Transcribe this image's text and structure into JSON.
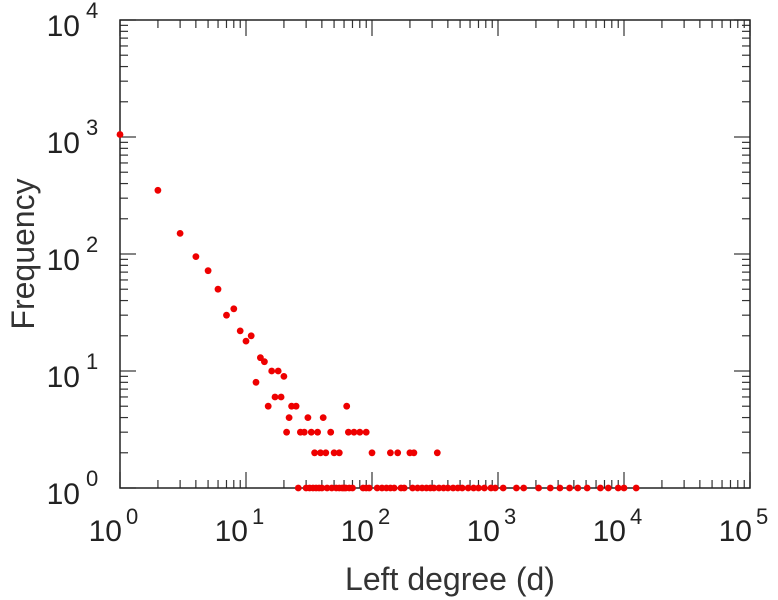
{
  "chart_data": {
    "type": "scatter",
    "title": "",
    "xlabel": "Left degree (d)",
    "ylabel": "Frequency",
    "xscale": "log",
    "yscale": "log",
    "xlim": [
      1,
      100000
    ],
    "ylim": [
      1,
      10000
    ],
    "grid": false,
    "marker_color": "#ee0000",
    "x_ticks": [
      {
        "base": "10",
        "exp": "0"
      },
      {
        "base": "10",
        "exp": "1"
      },
      {
        "base": "10",
        "exp": "2"
      },
      {
        "base": "10",
        "exp": "3"
      },
      {
        "base": "10",
        "exp": "4"
      },
      {
        "base": "10",
        "exp": "5"
      }
    ],
    "y_ticks": [
      {
        "base": "10",
        "exp": "0"
      },
      {
        "base": "10",
        "exp": "1"
      },
      {
        "base": "10",
        "exp": "2"
      },
      {
        "base": "10",
        "exp": "3"
      },
      {
        "base": "10",
        "exp": "4"
      }
    ],
    "points": [
      [
        1,
        1050
      ],
      [
        2,
        350
      ],
      [
        3,
        150
      ],
      [
        4,
        95
      ],
      [
        5,
        72
      ],
      [
        6,
        50
      ],
      [
        7,
        30
      ],
      [
        8,
        34
      ],
      [
        9,
        22
      ],
      [
        10,
        18
      ],
      [
        11,
        20
      ],
      [
        12,
        8
      ],
      [
        13,
        13
      ],
      [
        14,
        12
      ],
      [
        15,
        5
      ],
      [
        16,
        10
      ],
      [
        17,
        6
      ],
      [
        18,
        10
      ],
      [
        19,
        6
      ],
      [
        20,
        9
      ],
      [
        21,
        3
      ],
      [
        22,
        4
      ],
      [
        23,
        5
      ],
      [
        25,
        5
      ],
      [
        27,
        3
      ],
      [
        29,
        3
      ],
      [
        31,
        4
      ],
      [
        33,
        3
      ],
      [
        35,
        2
      ],
      [
        37,
        3
      ],
      [
        39,
        2
      ],
      [
        41,
        4
      ],
      [
        43,
        2
      ],
      [
        47,
        3
      ],
      [
        50,
        2
      ],
      [
        55,
        2
      ],
      [
        63,
        5
      ],
      [
        65,
        3
      ],
      [
        72,
        3
      ],
      [
        80,
        3
      ],
      [
        90,
        3
      ],
      [
        100,
        2
      ],
      [
        140,
        2
      ],
      [
        160,
        2
      ],
      [
        200,
        2
      ],
      [
        215,
        2
      ],
      [
        330,
        2
      ],
      [
        26,
        1
      ],
      [
        30,
        1
      ],
      [
        32,
        1
      ],
      [
        34,
        1
      ],
      [
        36,
        1
      ],
      [
        38,
        1
      ],
      [
        40,
        1
      ],
      [
        44,
        1
      ],
      [
        48,
        1
      ],
      [
        52,
        1
      ],
      [
        55,
        1
      ],
      [
        58,
        1
      ],
      [
        60,
        1
      ],
      [
        62,
        1
      ],
      [
        66,
        1
      ],
      [
        70,
        1
      ],
      [
        85,
        1
      ],
      [
        90,
        1
      ],
      [
        95,
        1
      ],
      [
        110,
        1
      ],
      [
        120,
        1
      ],
      [
        130,
        1
      ],
      [
        140,
        1
      ],
      [
        150,
        1
      ],
      [
        170,
        1
      ],
      [
        180,
        1
      ],
      [
        210,
        1
      ],
      [
        230,
        1
      ],
      [
        250,
        1
      ],
      [
        270,
        1
      ],
      [
        290,
        1
      ],
      [
        310,
        1
      ],
      [
        340,
        1
      ],
      [
        370,
        1
      ],
      [
        400,
        1
      ],
      [
        440,
        1
      ],
      [
        480,
        1
      ],
      [
        520,
        1
      ],
      [
        580,
        1
      ],
      [
        640,
        1
      ],
      [
        700,
        1
      ],
      [
        780,
        1
      ],
      [
        880,
        1
      ],
      [
        950,
        1
      ],
      [
        1100,
        1
      ],
      [
        1400,
        1
      ],
      [
        1600,
        1
      ],
      [
        2100,
        1
      ],
      [
        2600,
        1
      ],
      [
        3100,
        1
      ],
      [
        3700,
        1
      ],
      [
        4300,
        1
      ],
      [
        5100,
        1
      ],
      [
        6500,
        1
      ],
      [
        7500,
        1
      ],
      [
        9000,
        1
      ],
      [
        10000,
        1
      ],
      [
        12500,
        1
      ]
    ]
  }
}
